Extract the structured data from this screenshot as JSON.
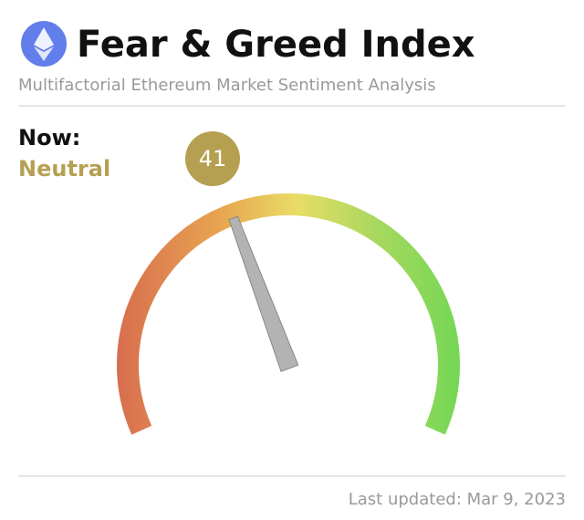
{
  "chart_data": {
    "type": "gauge",
    "title": "Fear & Greed Index",
    "subtitle": "Multifactorial Ethereum Market Sentiment Analysis",
    "now_label": "Now:",
    "status": "Neutral",
    "value": 41,
    "ylim": [
      0,
      100
    ],
    "color": "#b5a052",
    "footer": "Last updated: Mar 9, 2023"
  }
}
